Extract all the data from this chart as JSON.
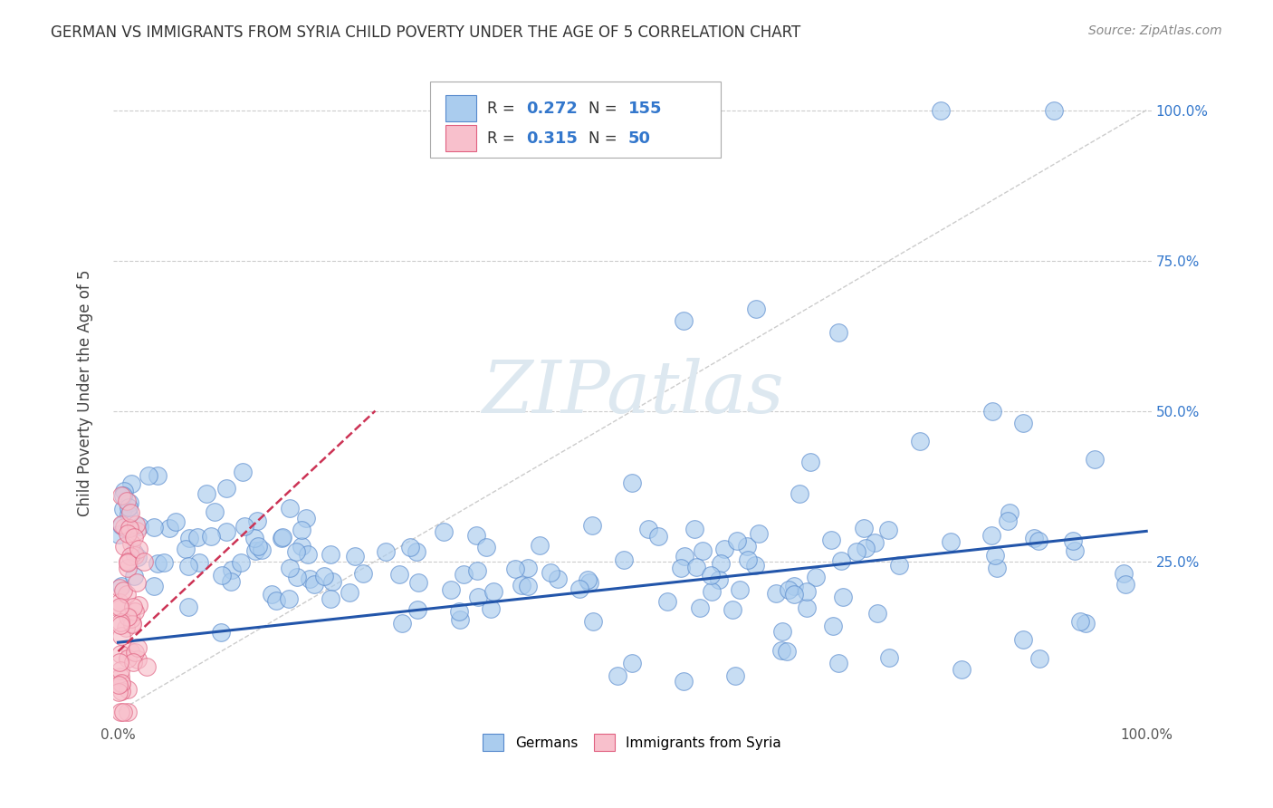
{
  "title": "GERMAN VS IMMIGRANTS FROM SYRIA CHILD POVERTY UNDER THE AGE OF 5 CORRELATION CHART",
  "source": "Source: ZipAtlas.com",
  "ylabel_label": "Child Poverty Under the Age of 5",
  "legend_labels": [
    "Germans",
    "Immigrants from Syria"
  ],
  "german_R": 0.272,
  "german_N": 155,
  "syria_R": 0.315,
  "syria_N": 50,
  "german_color": "#aaccee",
  "german_color_dark": "#5588cc",
  "syria_color": "#f8c0cc",
  "syria_color_dark": "#e06080",
  "german_line_color": "#2255aa",
  "syria_line_color": "#cc3355",
  "watermark_color": "#dde8f0",
  "title_fontsize": 12
}
